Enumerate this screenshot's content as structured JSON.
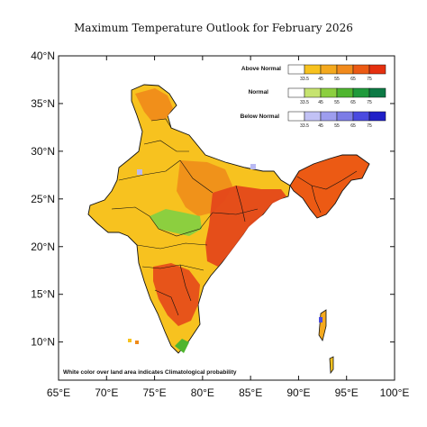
{
  "title": "Maximum Temperature Outlook for February 2026",
  "axes": {
    "x_ticks": [
      "65°E",
      "70°E",
      "75°E",
      "80°E",
      "85°E",
      "90°E",
      "95°E",
      "100°E"
    ],
    "y_ticks": [
      "40°N",
      "35°N",
      "30°N",
      "25°N",
      "20°N",
      "15°N",
      "10°N"
    ],
    "lon_range": [
      65,
      100
    ],
    "lat_range": [
      6,
      40
    ]
  },
  "legend": {
    "categories": [
      {
        "label": "Above Normal",
        "colors": [
          "#ffffff",
          "#f7c21f",
          "#f4a91e",
          "#f18a1c",
          "#ec5a14",
          "#e5300f"
        ]
      },
      {
        "label": "Normal",
        "colors": [
          "#ffffff",
          "#c6e36f",
          "#8ccf3f",
          "#4fb52f",
          "#1f9a3b",
          "#0c7a45"
        ]
      },
      {
        "label": "Below Normal",
        "colors": [
          "#ffffff",
          "#c2c2f5",
          "#9d9dee",
          "#7c7ce6",
          "#4a4ae0",
          "#1f1fc7"
        ]
      }
    ],
    "ticks": [
      "33.5",
      "45",
      "55",
      "65",
      "75"
    ]
  },
  "note": "White color over land area indicates Climatological probability",
  "map_colors": {
    "above_light": "#f7c21f",
    "above_mid": "#f4a91e",
    "above_orange": "#ef8a1a",
    "above_deep": "#e4481a",
    "normal": "#8ccf3f",
    "below": "#b9b9f3",
    "boundary": "#111111"
  }
}
